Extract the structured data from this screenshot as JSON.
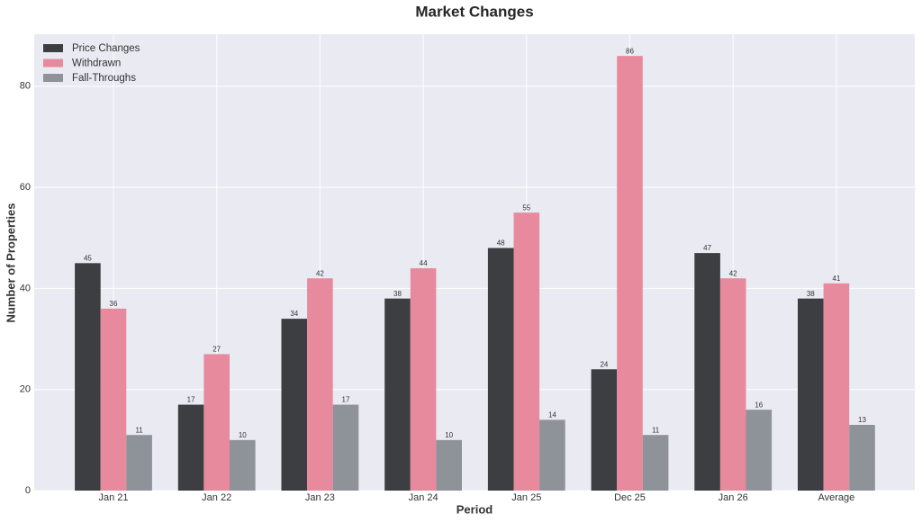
{
  "chart_data": {
    "type": "bar",
    "title": "Market Changes",
    "x_label": "Period",
    "y_label": "Number of Properties",
    "categories": [
      "Jan 21",
      "Jan 22",
      "Jan 23",
      "Jan 24",
      "Jan 25",
      "Dec 25",
      "Jan 26",
      "Average"
    ],
    "series": [
      {
        "name": "Price Changes",
        "color": "#3d3e42",
        "values": [
          45,
          17,
          34,
          38,
          48,
          24,
          47,
          38
        ]
      },
      {
        "name": "Withdrawn",
        "color": "#e88a9e",
        "values": [
          36,
          27,
          42,
          44,
          55,
          86,
          42,
          41
        ]
      },
      {
        "name": "Fall-Throughs",
        "color": "#8e9299",
        "values": [
          11,
          10,
          17,
          10,
          14,
          11,
          16,
          13
        ]
      }
    ],
    "ylim": [
      0,
      90.3
    ],
    "yticks": [
      0,
      20,
      40,
      60,
      80
    ],
    "grid": true,
    "legend": "upper left"
  }
}
